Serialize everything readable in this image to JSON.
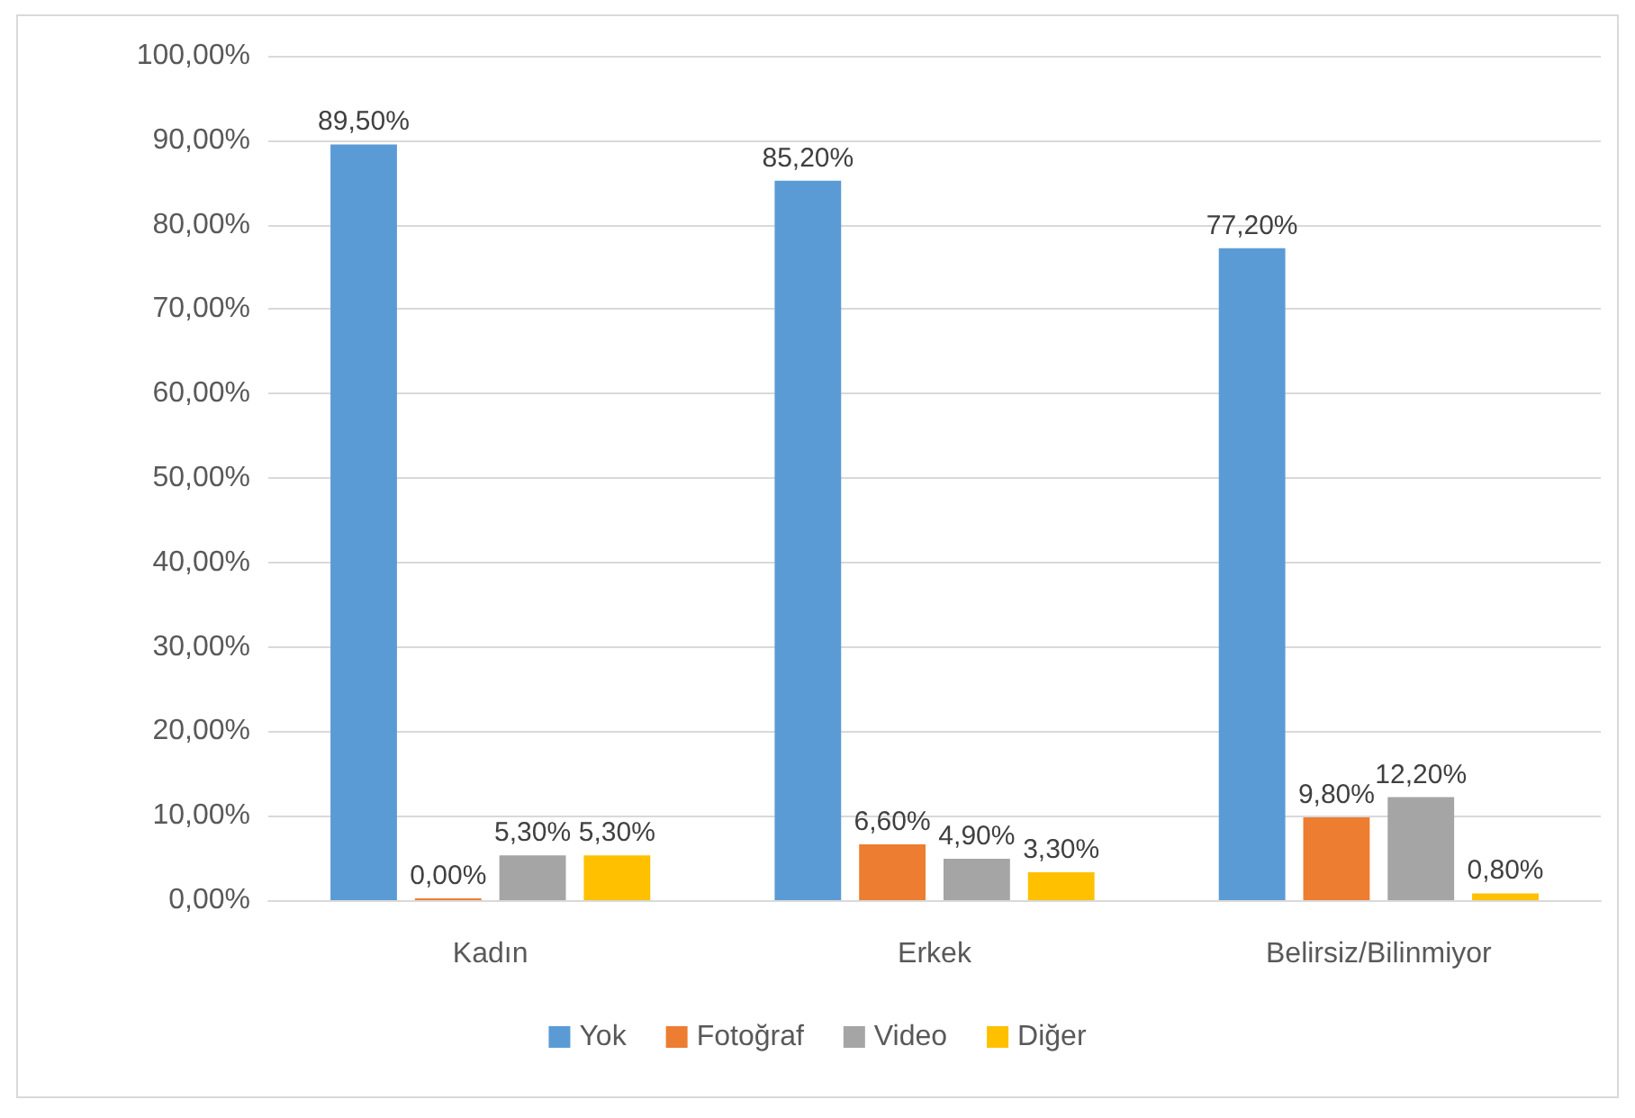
{
  "chart_data": {
    "type": "bar",
    "categories": [
      "Kadın",
      "Erkek",
      "Belirsiz/Bilinmiyor"
    ],
    "series": [
      {
        "name": "Yok",
        "color": "#5b9bd5",
        "values": [
          89.5,
          85.2,
          77.2
        ],
        "value_labels": [
          "89,50%",
          "85,20%",
          "77,20%"
        ]
      },
      {
        "name": "Fotoğraf",
        "color": "#ed7d31",
        "values": [
          0,
          6.6,
          9.8
        ],
        "value_labels": [
          "0,00%",
          "6,60%",
          "9,80%"
        ]
      },
      {
        "name": "Video",
        "color": "#a5a5a5",
        "values": [
          5.3,
          4.9,
          12.2
        ],
        "value_labels": [
          "5,30%",
          "4,90%",
          "12,20%"
        ]
      },
      {
        "name": "Diğer",
        "color": "#ffc000",
        "values": [
          5.3,
          3.3,
          0.8
        ],
        "value_labels": [
          "5,30%",
          "3,30%",
          "0,80%"
        ]
      }
    ],
    "ylim": [
      0,
      100
    ],
    "yticks": [
      {
        "value": 0,
        "label": "0,00%"
      },
      {
        "value": 10,
        "label": "10,00%"
      },
      {
        "value": 20,
        "label": "20,00%"
      },
      {
        "value": 30,
        "label": "30,00%"
      },
      {
        "value": 40,
        "label": "40,00%"
      },
      {
        "value": 50,
        "label": "50,00%"
      },
      {
        "value": 60,
        "label": "60,00%"
      },
      {
        "value": 70,
        "label": "70,00%"
      },
      {
        "value": 80,
        "label": "80,00%"
      },
      {
        "value": 90,
        "label": "90,00%"
      },
      {
        "value": 100,
        "label": "100,00%"
      }
    ],
    "grid": "y",
    "legend": "bottom"
  }
}
